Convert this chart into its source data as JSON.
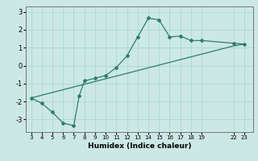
{
  "xlabel": "Humidex (Indice chaleur)",
  "ylabel": "",
  "background_color": "#cce8e4",
  "grid_color": "#aad8d4",
  "line_color": "#2e7d6e",
  "curve_x": [
    3,
    4,
    5,
    6,
    7,
    7.5,
    8,
    9,
    10,
    11,
    12,
    13,
    14,
    15,
    16,
    17,
    18,
    19,
    22,
    23
  ],
  "curve_y": [
    -1.8,
    -2.1,
    -2.6,
    -3.2,
    -3.35,
    -1.7,
    -0.85,
    -0.7,
    -0.55,
    -0.1,
    0.55,
    1.6,
    2.65,
    2.55,
    1.6,
    1.65,
    1.4,
    1.4,
    1.25,
    1.2
  ],
  "line_x": [
    3,
    22,
    23
  ],
  "line_y": [
    -1.8,
    1.1,
    1.2
  ],
  "xticks": [
    3,
    4,
    5,
    6,
    7,
    8,
    9,
    10,
    11,
    12,
    13,
    14,
    15,
    16,
    17,
    18,
    19,
    22,
    23
  ],
  "yticks": [
    -3,
    -2,
    -1,
    0,
    1,
    2,
    3
  ],
  "xlim": [
    2.5,
    23.8
  ],
  "ylim": [
    -3.7,
    3.3
  ]
}
